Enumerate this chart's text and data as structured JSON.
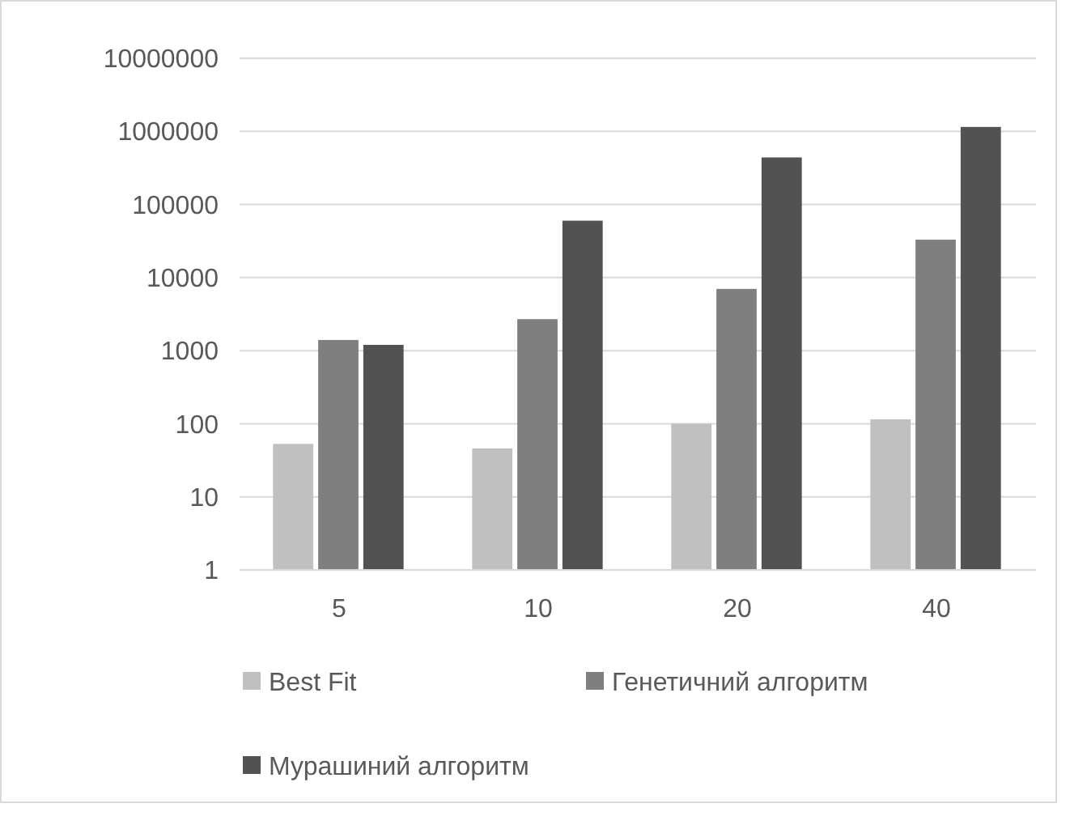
{
  "chart_data": {
    "type": "bar",
    "log": "y",
    "categories": [
      "5",
      "10",
      "20",
      "40"
    ],
    "series": [
      {
        "name": "Best Fit",
        "color": "#c0c0c0",
        "values": [
          53,
          46,
          100,
          115
        ]
      },
      {
        "name": "Генетичний алгоритм",
        "color": "#7f7f7f",
        "values": [
          1400,
          2700,
          7000,
          33000
        ]
      },
      {
        "name": "Мурашиний алгоритм",
        "color": "#525252",
        "values": [
          1200,
          60000,
          440000,
          1150000
        ]
      }
    ],
    "ylim": [
      1,
      10000000
    ],
    "yticks": [
      1,
      10,
      100,
      1000,
      10000,
      100000,
      1000000,
      10000000
    ],
    "grid": "y",
    "legend": "bottom"
  }
}
